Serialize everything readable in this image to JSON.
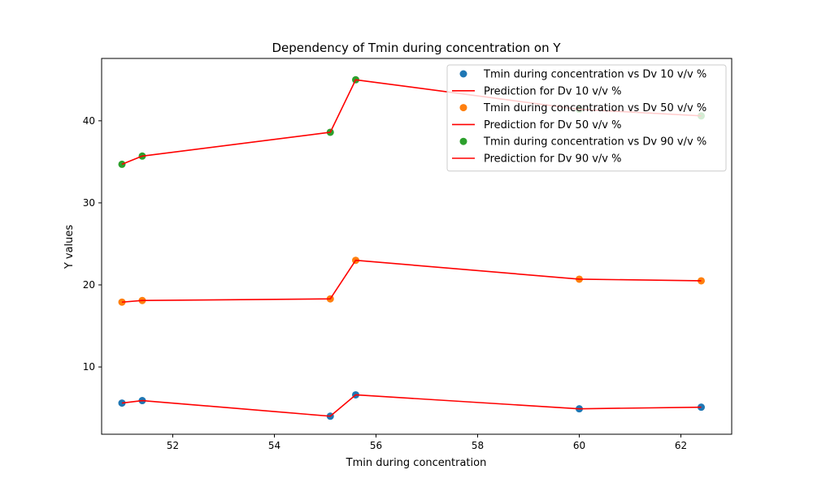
{
  "chart_data": {
    "type": "scatter",
    "title": "Dependency of Tmin during concentration on Y",
    "xlabel": "Tmin during concentration",
    "ylabel": "Y values",
    "xlim": [
      50.6,
      63.0
    ],
    "ylim": [
      1.8,
      47.6
    ],
    "xticks": [
      52,
      54,
      56,
      58,
      60,
      62
    ],
    "yticks": [
      10,
      20,
      30,
      40
    ],
    "grid": false,
    "legend_position": "top-right",
    "x": [
      51.0,
      51.4,
      55.1,
      55.6,
      60.0,
      62.4
    ],
    "series": [
      {
        "name": "Tmin during concentration vs Dv 10 v/v %",
        "kind": "scatter",
        "color": "#1f77b4",
        "values": [
          5.6,
          5.9,
          4.0,
          6.6,
          4.9,
          5.1
        ]
      },
      {
        "name": "Prediction for Dv 10 v/v %",
        "kind": "line",
        "color": "#ff0000",
        "values": [
          5.6,
          5.9,
          4.0,
          6.6,
          4.9,
          5.1
        ]
      },
      {
        "name": "Tmin during concentration vs Dv 50 v/v %",
        "kind": "scatter",
        "color": "#ff7f0e",
        "values": [
          17.9,
          18.1,
          18.3,
          23.0,
          20.7,
          20.5
        ]
      },
      {
        "name": "Prediction for Dv 50 v/v %",
        "kind": "line",
        "color": "#ff0000",
        "values": [
          17.9,
          18.1,
          18.3,
          23.0,
          20.7,
          20.5
        ]
      },
      {
        "name": "Tmin during concentration vs Dv 90 v/v %",
        "kind": "scatter",
        "color": "#2ca02c",
        "values": [
          34.7,
          35.7,
          38.6,
          45.0,
          41.4,
          40.6
        ]
      },
      {
        "name": "Prediction for Dv 90 v/v %",
        "kind": "line",
        "color": "#ff0000",
        "values": [
          34.7,
          35.7,
          38.6,
          45.0,
          41.4,
          40.6
        ]
      }
    ]
  }
}
